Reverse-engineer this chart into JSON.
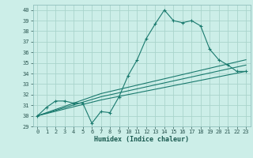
{
  "title": "",
  "xlabel": "Humidex (Indice chaleur)",
  "bg_color": "#cceee8",
  "grid_color": "#aad4cc",
  "line_color": "#1a7a6e",
  "xlim": [
    -0.5,
    23.5
  ],
  "ylim": [
    29,
    40.5
  ],
  "xticks": [
    0,
    1,
    2,
    3,
    4,
    5,
    6,
    7,
    8,
    9,
    10,
    11,
    12,
    13,
    14,
    15,
    16,
    17,
    18,
    19,
    20,
    21,
    22,
    23
  ],
  "yticks": [
    29,
    30,
    31,
    32,
    33,
    34,
    35,
    36,
    37,
    38,
    39,
    40
  ],
  "line1_x": [
    0,
    1,
    2,
    3,
    4,
    5,
    6,
    7,
    8,
    9,
    10,
    11,
    12,
    13,
    14,
    15,
    16,
    17,
    18,
    19,
    20,
    21,
    22,
    23
  ],
  "line1_y": [
    30.0,
    30.8,
    31.4,
    31.4,
    31.2,
    31.2,
    29.3,
    30.4,
    30.3,
    31.8,
    33.8,
    35.3,
    37.3,
    38.7,
    40.0,
    39.0,
    38.8,
    39.0,
    38.5,
    36.3,
    35.3,
    34.8,
    34.2,
    34.2
  ],
  "line2_x": [
    0,
    7,
    23
  ],
  "line2_y": [
    30.0,
    31.5,
    34.2
  ],
  "line3_x": [
    0,
    7,
    23
  ],
  "line3_y": [
    30.0,
    31.8,
    34.8
  ],
  "line4_x": [
    0,
    7,
    23
  ],
  "line4_y": [
    30.0,
    32.1,
    35.3
  ]
}
